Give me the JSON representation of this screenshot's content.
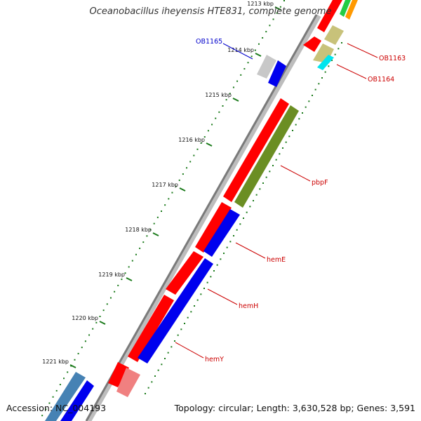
{
  "title": "Oceanobacillus iheyensis HTE831, complete genome",
  "accession_text": "Accession: NC_004193",
  "summary_text": "Topology: circular; Length: 3,630,528 bp; Genes: 3,591",
  "ticks": [
    {
      "kbp": 1213,
      "label": "1213 kbp"
    },
    {
      "kbp": 1214,
      "label": "1214 kbp"
    },
    {
      "kbp": 1215,
      "label": "1215 kbp"
    },
    {
      "kbp": 1216,
      "label": "1216 kbp"
    },
    {
      "kbp": 1217,
      "label": "1217 kbp"
    },
    {
      "kbp": 1218,
      "label": "1218 kbp"
    },
    {
      "kbp": 1219,
      "label": "1219 kbp"
    },
    {
      "kbp": 1220,
      "label": "1220 kbp"
    },
    {
      "kbp": 1221,
      "label": "1221 kbp"
    }
  ],
  "gene_labels": [
    {
      "id": "OB1165",
      "text": "OB1165",
      "color": "#0000cc"
    },
    {
      "id": "OB1163",
      "text": "OB1163",
      "color": "#cc0000"
    },
    {
      "id": "OB1164",
      "text": "OB1164",
      "color": "#cc0000"
    },
    {
      "id": "pbpF",
      "text": "pbpF",
      "color": "#cc0000"
    },
    {
      "id": "hemE",
      "text": "hemE",
      "color": "#cc0000"
    },
    {
      "id": "hemH",
      "text": "hemH",
      "color": "#cc0000"
    },
    {
      "id": "hemY",
      "text": "hemY",
      "color": "#cc0000"
    }
  ],
  "colors": {
    "cds_red": "#ff0000",
    "cds_blue": "#0000ee",
    "cds_olive": "#6b8e23",
    "cds_khaki": "#c8c27a",
    "cds_cyan": "#00e5ee",
    "cds_gray": "#c8c8c8",
    "cds_pink": "#f08080",
    "cds_steel": "#4682b4",
    "tick_green": "#1a7a1a",
    "backbone": "#777777"
  }
}
